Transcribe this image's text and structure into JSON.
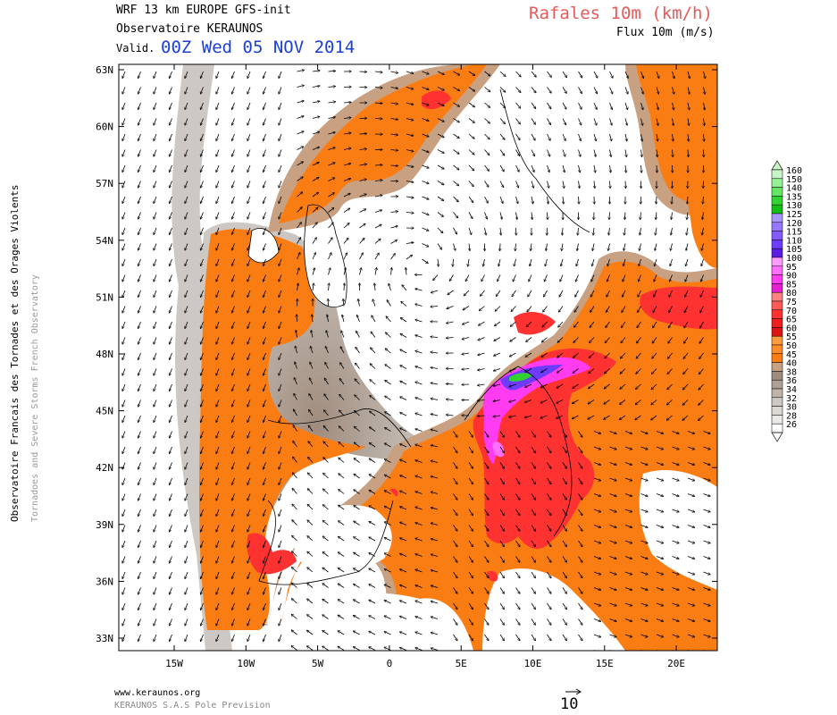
{
  "header": {
    "model": "WRF 13 km EUROPE  GFS-init",
    "observatory": "Observatoire KERAUNOS",
    "valid_label": "Valid.",
    "valid_time": "00Z Wed 05 NOV 2014",
    "variable": "Rafales 10m (km/h)",
    "flux": "Flux 10m (m/s)"
  },
  "side_text": {
    "line1": "Observatoire Francais des Tornades et des Orages Violents",
    "line2": "Tornadoes and Severe Storms French Observatory"
  },
  "footer": {
    "url": "www.keraunos.org",
    "company": "KERAUNOS S.A.S Pole Prevision",
    "reference_vector": "10"
  },
  "map": {
    "lat_labels": [
      "63N",
      "60N",
      "57N",
      "54N",
      "51N",
      "48N",
      "45N",
      "42N",
      "39N",
      "36N",
      "33N"
    ],
    "lon_labels": [
      "15W",
      "10W",
      "5W",
      "0",
      "5E",
      "10E",
      "15E",
      "20E"
    ]
  },
  "legend": {
    "levels": [
      "160",
      "150",
      "140",
      "135",
      "130",
      "125",
      "120",
      "115",
      "110",
      "105",
      "100",
      "95",
      "90",
      "85",
      "80",
      "75",
      "70",
      "65",
      "60",
      "55",
      "50",
      "45",
      "40",
      "38",
      "36",
      "34",
      "32",
      "30",
      "28",
      "26"
    ],
    "colors": [
      "#c8f5c8",
      "#96f096",
      "#64e664",
      "#32d232",
      "#14be14",
      "#aa96ff",
      "#9678ff",
      "#825aff",
      "#6e3cff",
      "#5a1ee6",
      "#ff9bff",
      "#ff6eff",
      "#ff3cf0",
      "#e61ed2",
      "#ff8282",
      "#ff5a5a",
      "#ff3232",
      "#f01e1e",
      "#dc1414",
      "#ff9b3c",
      "#ff8c28",
      "#fa7d14",
      "#c8a082",
      "#a08c7d",
      "#afa096",
      "#beb4aa",
      "#cdc8c3",
      "#dcd8d4",
      "#ebe9e7",
      "#ffffff"
    ]
  }
}
